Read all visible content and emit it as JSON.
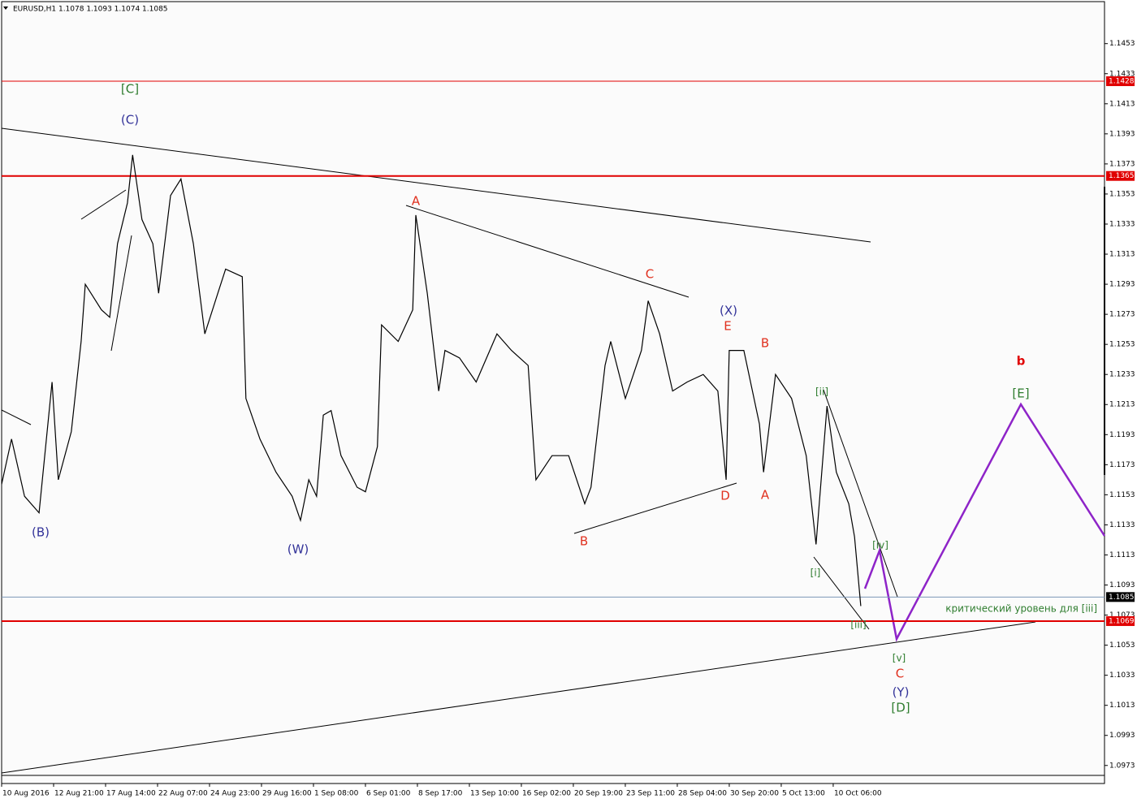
{
  "chart_data": {
    "type": "line",
    "title": "EURUSD,H1  1.1078 1.1093 1.1074 1.1085",
    "xlim": [
      0,
      21.22
    ],
    "ylim": [
      1.0961,
      1.1482
    ],
    "xticks": [
      {
        "value": 0,
        "label": "10 Aug 2016"
      },
      {
        "value": 1,
        "label": "12 Aug 21:00"
      },
      {
        "value": 2,
        "label": "17 Aug 14:00"
      },
      {
        "value": 3,
        "label": "22 Aug 07:00"
      },
      {
        "value": 4,
        "label": "24 Aug 23:00"
      },
      {
        "value": 5,
        "label": "29 Aug 16:00"
      },
      {
        "value": 6,
        "label": "1 Sep 08:00"
      },
      {
        "value": 7,
        "label": "6 Sep 01:00"
      },
      {
        "value": 8,
        "label": "8 Sep 17:00"
      },
      {
        "value": 9,
        "label": "13 Sep 10:00"
      },
      {
        "value": 10,
        "label": "16 Sep 02:00"
      },
      {
        "value": 11,
        "label": "20 Sep 19:00"
      },
      {
        "value": 12,
        "label": "23 Sep 11:00"
      },
      {
        "value": 13,
        "label": "28 Sep 04:00"
      },
      {
        "value": 14,
        "label": "30 Sep 20:00"
      },
      {
        "value": 15,
        "label": "5 Oct 13:00"
      },
      {
        "value": 16,
        "label": "10 Oct 06:00"
      }
    ],
    "yticks": [
      1.0973,
      1.0993,
      1.1013,
      1.1033,
      1.1053,
      1.1073,
      1.1093,
      1.1113,
      1.1133,
      1.1153,
      1.1173,
      1.1193,
      1.1213,
      1.1233,
      1.1253,
      1.1273,
      1.1293,
      1.1313,
      1.1333,
      1.1353,
      1.1373,
      1.1393,
      1.1413,
      1.1433,
      1.1453
    ],
    "price": {
      "color": "#000000",
      "x": [
        0,
        0.19,
        0.44,
        0.72,
        0.97,
        1.09,
        1.34,
        1.53,
        1.61,
        1.92,
        2.08,
        2.23,
        2.42,
        2.52,
        2.7,
        2.91,
        3.02,
        3.25,
        3.45,
        3.69,
        3.91,
        4.16,
        4.31,
        4.63,
        4.7,
        4.97,
        5.28,
        5.59,
        5.75,
        5.91,
        6.06,
        6.19,
        6.34,
        6.53,
        6.84,
        7,
        7.23,
        7.31,
        7.63,
        7.91,
        7.97,
        8.19,
        8.41,
        8.53,
        8.81,
        9.13,
        9.53,
        9.81,
        10.13,
        10.28,
        10.59,
        10.91,
        11.22,
        11.34,
        11.61,
        11.72,
        12,
        12.31,
        12.44,
        12.66,
        12.91,
        13.19,
        13.5,
        13.78,
        13.94,
        14,
        14.28,
        14.58,
        14.66,
        14.89,
        15.2,
        15.48,
        15.67,
        15.88,
        16.06,
        16.3,
        16.41,
        16.53
      ],
      "values": [
        1.116,
        1.119,
        1.1152,
        1.1141,
        1.1228,
        1.1163,
        1.1195,
        1.1255,
        1.1293,
        1.1276,
        1.1271,
        1.132,
        1.1347,
        1.1379,
        1.1336,
        1.132,
        1.1287,
        1.1352,
        1.1363,
        1.132,
        1.126,
        1.1287,
        1.1303,
        1.1298,
        1.1217,
        1.119,
        1.1168,
        1.1152,
        1.1136,
        1.1163,
        1.1152,
        1.1206,
        1.1209,
        1.1179,
        1.1158,
        1.1155,
        1.1185,
        1.1266,
        1.1255,
        1.1276,
        1.1339,
        1.1287,
        1.1222,
        1.1249,
        1.1244,
        1.1228,
        1.126,
        1.1249,
        1.1239,
        1.1163,
        1.1179,
        1.1179,
        1.1147,
        1.1158,
        1.1239,
        1.1255,
        1.1217,
        1.1249,
        1.1282,
        1.126,
        1.1222,
        1.1228,
        1.1233,
        1.1222,
        1.1163,
        1.1249,
        1.1249,
        1.12,
        1.1168,
        1.1233,
        1.1217,
        1.1179,
        1.112,
        1.1212,
        1.1168,
        1.1147,
        1.1125,
        1.1079
      ]
    },
    "levels": [
      {
        "value": 1.1428,
        "color": "#e00000",
        "width": 1
      },
      {
        "value": 1.1365,
        "color": "#e00000",
        "width": 2
      },
      {
        "value": 1.1069,
        "color": "#e00000",
        "width": 2
      },
      {
        "value": 1.1085,
        "color": "#000000",
        "line_color": "#7b97b8",
        "width": 1
      }
    ],
    "annotations": [
      {
        "text": "[C]",
        "color": "#2f7d2f"
      },
      {
        "text": "(C)",
        "color": "#333399"
      },
      {
        "text": "(B)",
        "color": "#333399"
      },
      {
        "text": "(W)",
        "color": "#333399"
      },
      {
        "text": "A",
        "color": "#e0301e"
      },
      {
        "text": "C",
        "color": "#e0301e"
      },
      {
        "text": "B",
        "color": "#e0301e"
      },
      {
        "text": "(X)",
        "color": "#333399"
      },
      {
        "text": "E",
        "color": "#e0301e"
      },
      {
        "text": "D",
        "color": "#e0301e"
      },
      {
        "text": "B",
        "color": "#e0301e"
      },
      {
        "text": "A",
        "color": "#e0301e"
      },
      {
        "text": "[ii]",
        "color": "#2f7d2f"
      },
      {
        "text": "[i]",
        "color": "#2f7d2f"
      },
      {
        "text": "[iv]",
        "color": "#2f7d2f"
      },
      {
        "text": "[iii]",
        "color": "#2f7d2f"
      },
      {
        "text": "[v]",
        "color": "#2f7d2f"
      },
      {
        "text": "C",
        "color": "#e0301e"
      },
      {
        "text": "(Y)",
        "color": "#333399"
      },
      {
        "text": "[D]",
        "color": "#2f7d2f"
      },
      {
        "text": "b",
        "color": "#e00000"
      },
      {
        "text": "[E]",
        "color": "#2f7d2f"
      },
      {
        "text": "критический уровень для [iii]",
        "color": "#2f7d2f"
      }
    ]
  }
}
